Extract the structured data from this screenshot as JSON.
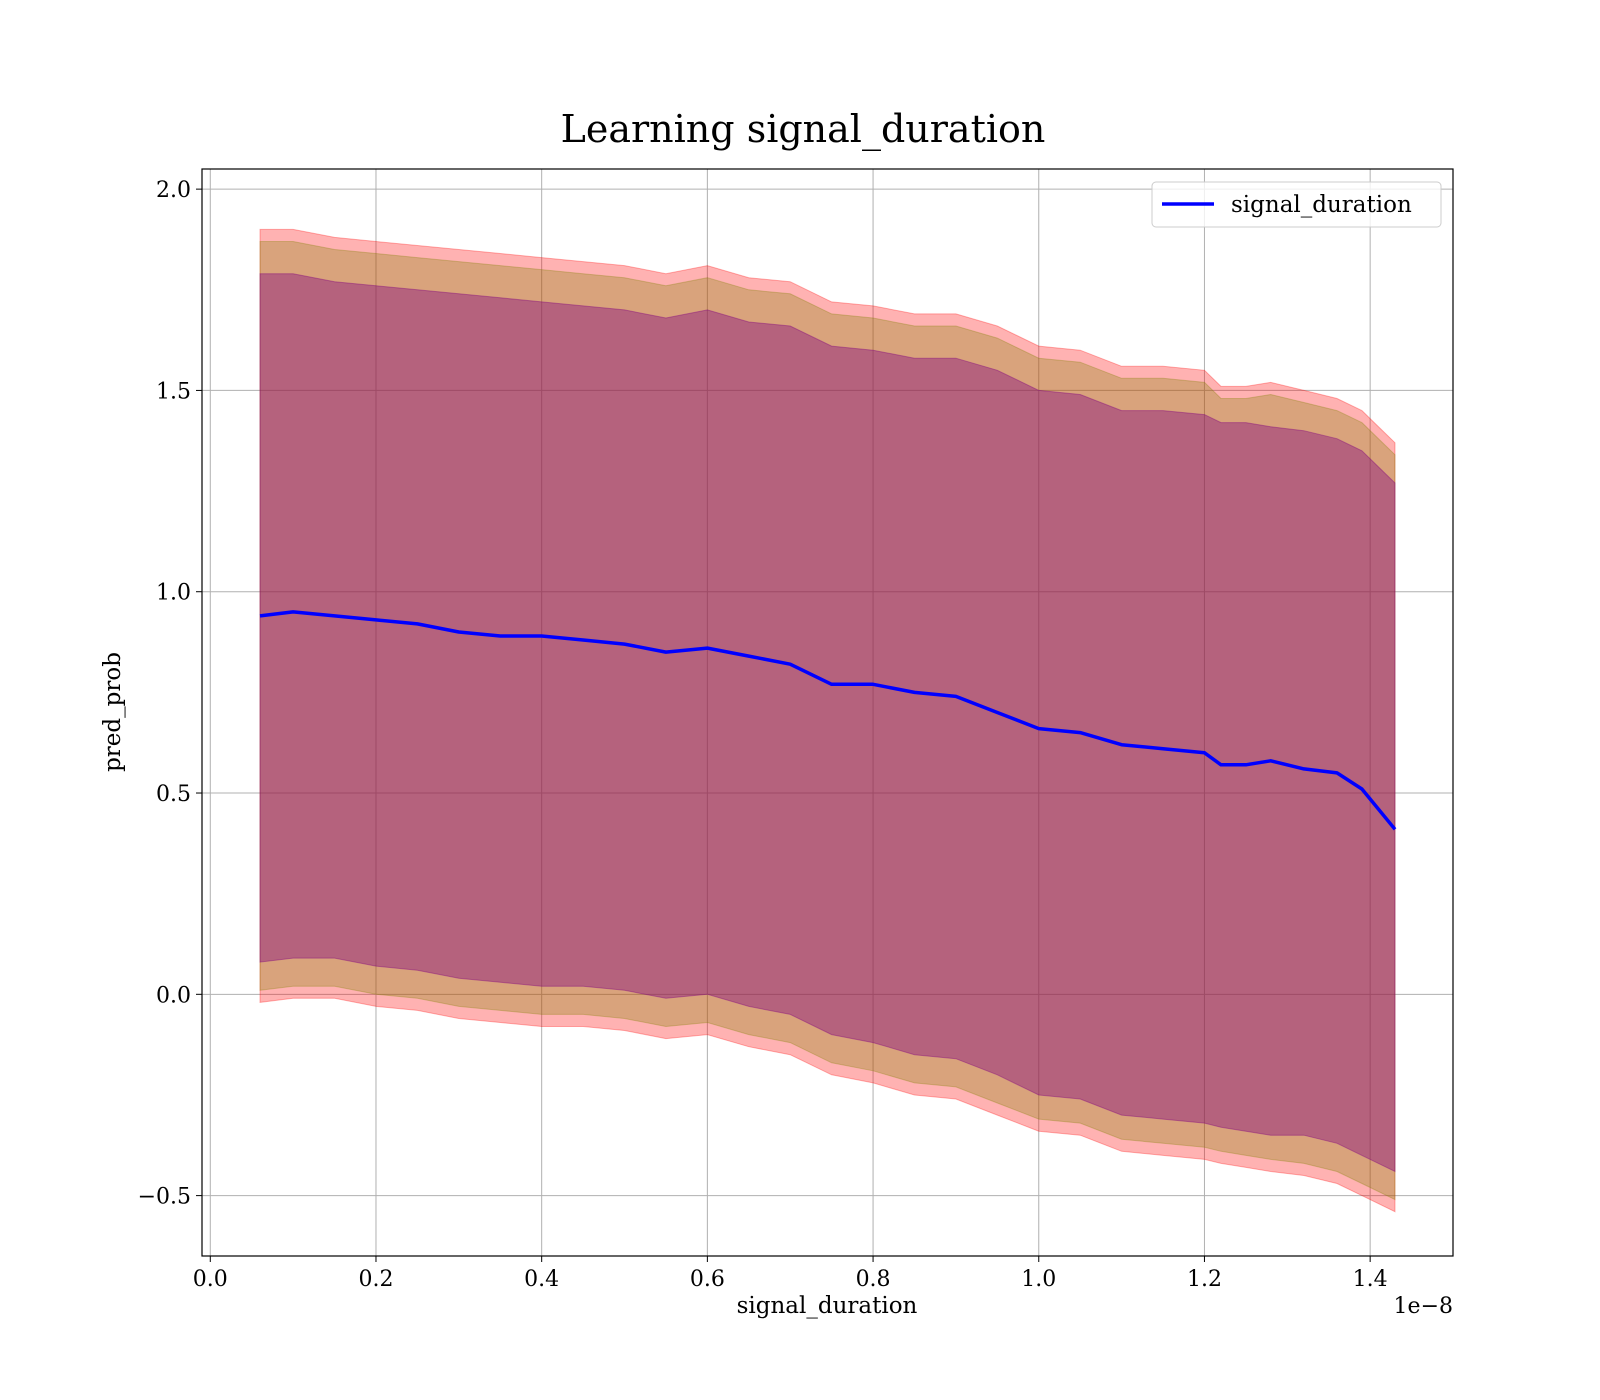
{
  "chart_data": {
    "type": "line",
    "title": "Learning signal_duration",
    "xlabel": "signal_duration",
    "ylabel": "pred_prob",
    "x_offset_label": "1e−8",
    "xlim": [
      -0.01,
      1.5
    ],
    "ylim": [
      -0.65,
      2.05
    ],
    "grid": true,
    "legend": {
      "placement": "top-right",
      "entries": [
        "signal_duration"
      ]
    },
    "xticks": [
      0.0,
      0.2,
      0.4,
      0.6,
      0.8,
      1.0,
      1.2,
      1.4
    ],
    "xtick_labels": [
      "0.0",
      "0.2",
      "0.4",
      "0.6",
      "0.8",
      "1.0",
      "1.2",
      "1.4"
    ],
    "yticks": [
      -0.5,
      0.0,
      0.5,
      1.0,
      1.5,
      2.0
    ],
    "ytick_labels": [
      "−0.5",
      "0.0",
      "0.5",
      "1.0",
      "1.5",
      "2.0"
    ],
    "colors": {
      "line": "#0000ff",
      "band_outer": "#ff0000",
      "band_middle": "#808000",
      "band_inner": "#800080"
    },
    "series": [
      {
        "name": "signal_duration",
        "x": [
          0.06,
          0.1,
          0.15,
          0.2,
          0.25,
          0.3,
          0.35,
          0.4,
          0.45,
          0.5,
          0.55,
          0.6,
          0.65,
          0.7,
          0.75,
          0.8,
          0.85,
          0.9,
          0.95,
          1.0,
          1.05,
          1.1,
          1.15,
          1.2,
          1.22,
          1.25,
          1.28,
          1.32,
          1.36,
          1.39,
          1.43
        ],
        "y": [
          0.94,
          0.95,
          0.94,
          0.93,
          0.92,
          0.9,
          0.89,
          0.89,
          0.88,
          0.87,
          0.85,
          0.86,
          0.84,
          0.82,
          0.77,
          0.77,
          0.75,
          0.74,
          0.7,
          0.66,
          0.65,
          0.62,
          0.61,
          0.6,
          0.57,
          0.57,
          0.58,
          0.56,
          0.55,
          0.51,
          0.41
        ],
        "inner_upper": [
          1.79,
          1.79,
          1.77,
          1.76,
          1.75,
          1.74,
          1.73,
          1.72,
          1.71,
          1.7,
          1.68,
          1.7,
          1.67,
          1.66,
          1.61,
          1.6,
          1.58,
          1.58,
          1.55,
          1.5,
          1.49,
          1.45,
          1.45,
          1.44,
          1.42,
          1.42,
          1.41,
          1.4,
          1.38,
          1.35,
          1.27
        ],
        "inner_lower": [
          0.08,
          0.09,
          0.09,
          0.07,
          0.06,
          0.04,
          0.03,
          0.02,
          0.02,
          0.01,
          -0.01,
          0.0,
          -0.03,
          -0.05,
          -0.1,
          -0.12,
          -0.15,
          -0.16,
          -0.2,
          -0.25,
          -0.26,
          -0.3,
          -0.31,
          -0.32,
          -0.33,
          -0.34,
          -0.35,
          -0.35,
          -0.37,
          -0.4,
          -0.44
        ],
        "middle_upper": [
          1.87,
          1.87,
          1.85,
          1.84,
          1.83,
          1.82,
          1.81,
          1.8,
          1.79,
          1.78,
          1.76,
          1.78,
          1.75,
          1.74,
          1.69,
          1.68,
          1.66,
          1.66,
          1.63,
          1.58,
          1.57,
          1.53,
          1.53,
          1.52,
          1.48,
          1.48,
          1.49,
          1.47,
          1.45,
          1.42,
          1.34
        ],
        "middle_lower": [
          0.01,
          0.02,
          0.02,
          0.0,
          -0.01,
          -0.03,
          -0.04,
          -0.05,
          -0.05,
          -0.06,
          -0.08,
          -0.07,
          -0.1,
          -0.12,
          -0.17,
          -0.19,
          -0.22,
          -0.23,
          -0.27,
          -0.31,
          -0.32,
          -0.36,
          -0.37,
          -0.38,
          -0.39,
          -0.4,
          -0.41,
          -0.42,
          -0.44,
          -0.47,
          -0.51
        ],
        "outer_upper": [
          1.9,
          1.9,
          1.88,
          1.87,
          1.86,
          1.85,
          1.84,
          1.83,
          1.82,
          1.81,
          1.79,
          1.81,
          1.78,
          1.77,
          1.72,
          1.71,
          1.69,
          1.69,
          1.66,
          1.61,
          1.6,
          1.56,
          1.56,
          1.55,
          1.51,
          1.51,
          1.52,
          1.5,
          1.48,
          1.45,
          1.37
        ],
        "outer_lower": [
          -0.02,
          -0.01,
          -0.01,
          -0.03,
          -0.04,
          -0.06,
          -0.07,
          -0.08,
          -0.08,
          -0.09,
          -0.11,
          -0.1,
          -0.13,
          -0.15,
          -0.2,
          -0.22,
          -0.25,
          -0.26,
          -0.3,
          -0.34,
          -0.35,
          -0.39,
          -0.4,
          -0.41,
          -0.42,
          -0.43,
          -0.44,
          -0.45,
          -0.47,
          -0.5,
          -0.54
        ]
      }
    ]
  }
}
